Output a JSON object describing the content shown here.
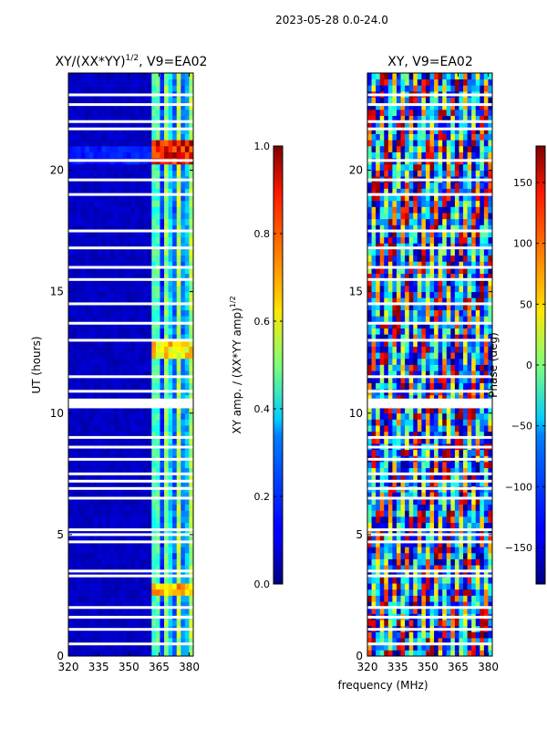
{
  "figure": {
    "suptitle": "2023-05-28 0.0-24.0",
    "xlabel": "frequency (MHz)"
  },
  "chart_data": [
    {
      "type": "heatmap",
      "title_main": "XY/(XX*YY)",
      "title_exp": "1/2",
      "title_suffix": ", V9=EA02",
      "xlabel": "",
      "ylabel": "UT (hours)",
      "xlim": [
        320,
        382
      ],
      "ylim": [
        0,
        24
      ],
      "xticks": [
        320,
        335,
        350,
        365,
        380
      ],
      "yticks": [
        0,
        5,
        10,
        15,
        20
      ],
      "colormap": "jet",
      "colorbar": {
        "label_main": "XY amp. / (XX*YY amp)",
        "label_exp": "1/2",
        "range": [
          0.0,
          1.0
        ],
        "ticks": [
          0.0,
          0.2,
          0.4,
          0.6,
          0.8,
          1.0
        ],
        "tick_labels": [
          "0.0",
          "0.2",
          "0.4",
          "0.6",
          "0.8",
          "1.0"
        ]
      },
      "value_ranges": [
        {
          "freq": [
            320,
            362
          ],
          "typical": 0.05
        },
        {
          "freq": [
            362,
            382
          ],
          "typical": 0.35,
          "peak_hours": [
            20.2,
            21.2
          ],
          "peak_value": 0.95
        }
      ]
    },
    {
      "type": "heatmap",
      "title_main": "XY, V9=EA02",
      "title_exp": "",
      "title_suffix": "",
      "xlabel": "frequency (MHz)",
      "ylabel": "",
      "xlim": [
        320,
        382
      ],
      "ylim": [
        0,
        24
      ],
      "xticks": [
        320,
        335,
        350,
        365,
        380
      ],
      "yticks": [
        0,
        5,
        10,
        15,
        20
      ],
      "colormap": "jet",
      "colorbar": {
        "label_main": "Phase (deg)",
        "label_exp": "",
        "range": [
          -180,
          180
        ],
        "ticks": [
          -150,
          -100,
          -50,
          0,
          50,
          100,
          150
        ],
        "tick_labels": [
          "−150",
          "−100",
          "−50",
          "0",
          "50",
          "100",
          "150"
        ]
      },
      "value_ranges": [
        {
          "freq": [
            320,
            382
          ],
          "typical": "phase wraps −180 to 180"
        }
      ]
    }
  ],
  "flagged_hours": [
    0.5,
    1.1,
    1.6,
    2.0,
    3.3,
    3.5,
    4.7,
    5.0,
    5.2,
    6.5,
    6.9,
    7.2,
    7.5,
    8.1,
    8.6,
    9.0,
    10.5,
    10.9,
    11.5,
    13.0,
    13.7,
    14.5,
    15.5,
    16.0,
    16.8,
    17.5,
    19.0,
    19.6,
    20.4,
    21.7,
    22.0,
    22.7,
    23.1
  ]
}
